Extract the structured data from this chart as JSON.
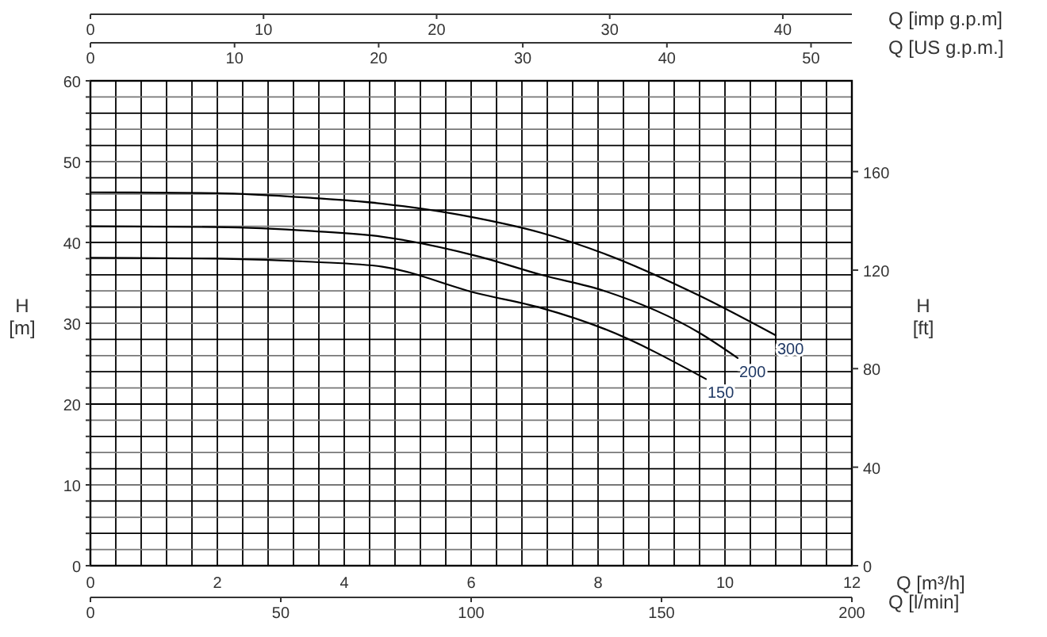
{
  "chart_data": {
    "type": "line",
    "xlabel": "Q [m³/h]",
    "ylabel": "H [m]",
    "y2label": "H [ft]",
    "x2label": "Q [imp g.p.m]",
    "xlim": [
      0,
      12
    ],
    "ylim": [
      0,
      60
    ],
    "y2lim": [
      0,
      196.85
    ],
    "x2lim": [
      0,
      43.99
    ],
    "xticks": [
      0,
      {
        "value": 0.4,
        "label": null
      },
      {
        "value": 0.8,
        "label": null
      },
      {
        "value": 1.2,
        "label": null
      },
      {
        "value": 1.6,
        "label": null
      },
      2,
      {
        "value": 2.4,
        "label": null
      },
      {
        "value": 2.8,
        "label": null
      },
      {
        "value": 3.2,
        "label": null
      },
      {
        "value": 3.6,
        "label": null
      },
      4,
      {
        "value": 4.4,
        "label": null
      },
      {
        "value": 4.8,
        "label": null
      },
      {
        "value": 5.2,
        "label": null
      },
      {
        "value": 5.6,
        "label": null
      },
      6,
      {
        "value": 6.4,
        "label": null
      },
      {
        "value": 6.8,
        "label": null
      },
      {
        "value": 7.2,
        "label": null
      },
      {
        "value": 7.6,
        "label": null
      },
      8,
      {
        "value": 8.4,
        "label": null
      },
      {
        "value": 8.8,
        "label": null
      },
      {
        "value": 9.2,
        "label": null
      },
      {
        "value": 9.6,
        "label": null
      },
      10,
      {
        "value": 10.4,
        "label": null
      },
      {
        "value": 10.8,
        "label": null
      },
      {
        "value": 11.2,
        "label": null
      },
      {
        "value": 11.6,
        "label": null
      },
      12
    ],
    "yticks": [
      0,
      {
        "value": 2,
        "label": null
      },
      {
        "value": 4,
        "label": null
      },
      {
        "value": 6,
        "label": null
      },
      {
        "value": 8,
        "label": null
      },
      10,
      {
        "value": 12,
        "label": null
      },
      {
        "value": 14,
        "label": null
      },
      {
        "value": 16,
        "label": null
      },
      {
        "value": 18,
        "label": null
      },
      20,
      {
        "value": 22,
        "label": null
      },
      {
        "value": 24,
        "label": null
      },
      {
        "value": 26,
        "label": null
      },
      {
        "value": 28,
        "label": null
      },
      30,
      {
        "value": 32,
        "label": null
      },
      {
        "value": 34,
        "label": null
      },
      {
        "value": 36,
        "label": null
      },
      {
        "value": 38,
        "label": null
      },
      40,
      {
        "value": 42,
        "label": null
      },
      {
        "value": 44,
        "label": null
      },
      {
        "value": 46,
        "label": null
      },
      {
        "value": 48,
        "label": null
      },
      50,
      {
        "value": 52,
        "label": null
      },
      {
        "value": 54,
        "label": null
      },
      {
        "value": 56,
        "label": null
      },
      {
        "value": 58,
        "label": null
      },
      60
    ],
    "y2ticks": [
      0,
      40,
      80,
      120,
      160
    ],
    "x2ticks": [
      0,
      10,
      20,
      30,
      40
    ],
    "annotations": [
      "Q [US g.p.m.]",
      "0",
      "10",
      "20",
      "30",
      "40",
      "50",
      "Q [l/min]",
      "0",
      "50",
      "100",
      "150",
      "200"
    ],
    "grid": true,
    "marker": "none",
    "line_style": "solid",
    "series": [
      {
        "name": "300",
        "color": "#000000",
        "x": [
          0,
          2,
          3.5,
          4.6,
          6.1,
          7.1,
          8.1,
          9.6,
          10.8
        ],
        "values": [
          46.2,
          46.1,
          45.5,
          44.8,
          43.0,
          41.2,
          38.6,
          33.4,
          28.5
        ]
      },
      {
        "name": "200",
        "color": "#000000",
        "x": [
          0,
          2,
          3.5,
          4.6,
          6.1,
          7.1,
          8.1,
          9.6,
          10.2
        ],
        "values": [
          42.0,
          41.9,
          41.4,
          40.7,
          38.3,
          36.0,
          34.0,
          28.8,
          25.7
        ]
      },
      {
        "name": "150",
        "color": "#000000",
        "x": [
          0,
          2,
          3.5,
          4.6,
          6.1,
          7.1,
          8.1,
          9.7
        ],
        "values": [
          38.1,
          38.0,
          37.6,
          37.0,
          33.7,
          31.9,
          29.3,
          23.1
        ]
      }
    ]
  }
}
